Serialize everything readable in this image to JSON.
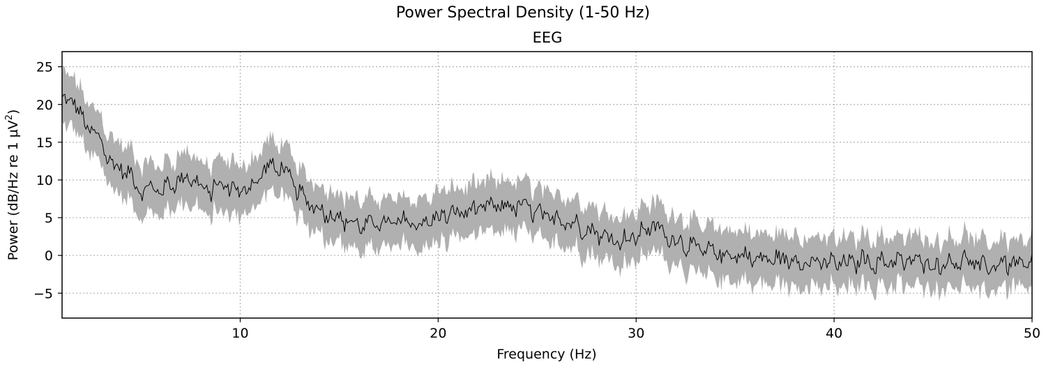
{
  "figure": {
    "suptitle": "Power Spectral Density (1-50 Hz)"
  },
  "chart_data": {
    "type": "line",
    "title": "EEG",
    "xlabel": "Frequency (Hz)",
    "ylabel_main": "Power (dB/Hz re 1 µV",
    "ylabel_sup": "2",
    "ylabel_end": ")",
    "xlim": [
      1,
      50
    ],
    "ylim": [
      -8.3,
      27
    ],
    "xticks": [
      10,
      20,
      30,
      40,
      50
    ],
    "yticks": [
      -5,
      0,
      5,
      10,
      15,
      20,
      25
    ],
    "ytick_labels": [
      "−5",
      "0",
      "5",
      "10",
      "15",
      "20",
      "25"
    ],
    "grid": true,
    "grid_style": "dotted",
    "band_color": "#b0b0b0",
    "line_color": "#000000",
    "series": [
      {
        "x": [
          1.0,
          1.5,
          2.0,
          2.5,
          3.0,
          3.5,
          4.0,
          4.5,
          5.0,
          5.5,
          6.0,
          6.5,
          7.0,
          7.5,
          8.0,
          8.5,
          9.0,
          9.5,
          10.0,
          10.5,
          11.0,
          11.5,
          12.0,
          12.5,
          13.0,
          13.5,
          14.0,
          14.5,
          15.0,
          15.5,
          16.0,
          16.5,
          17.0,
          17.5,
          18.0,
          18.5,
          19.0,
          19.5,
          20.0,
          20.5,
          21.0,
          21.5,
          22.0,
          22.5,
          23.0,
          23.5,
          24.0,
          24.5,
          25.0,
          25.5,
          26.0,
          26.5,
          27.0,
          27.5,
          28.0,
          28.5,
          29.0,
          29.5,
          30.0,
          30.5,
          31.0,
          31.5,
          32.0,
          32.5,
          33.0,
          33.5,
          34.0,
          34.5,
          35.0,
          35.5,
          36.0,
          36.5,
          37.0,
          37.5,
          38.0,
          38.5,
          39.0,
          39.5,
          40.0,
          40.5,
          41.0,
          41.5,
          42.0,
          42.5,
          43.0,
          43.5,
          44.0,
          44.5,
          45.0,
          45.5,
          46.0,
          46.5,
          47.0,
          47.5,
          48.0,
          48.5,
          49.0,
          49.5,
          50.0
        ],
        "mean": [
          20.0,
          21.0,
          18.0,
          16.5,
          15.0,
          12.0,
          11.5,
          10.5,
          8.5,
          9.0,
          8.5,
          9.5,
          10.0,
          10.5,
          9.0,
          8.5,
          9.5,
          9.0,
          8.5,
          9.0,
          10.5,
          12.0,
          11.5,
          10.5,
          8.0,
          7.0,
          6.0,
          5.5,
          5.0,
          4.5,
          4.0,
          4.0,
          4.5,
          4.0,
          4.5,
          4.5,
          4.0,
          4.5,
          5.0,
          5.5,
          5.5,
          6.0,
          6.0,
          6.5,
          6.5,
          6.5,
          6.5,
          6.5,
          5.5,
          5.0,
          5.0,
          4.5,
          4.0,
          3.5,
          3.0,
          2.5,
          2.0,
          2.0,
          2.5,
          3.5,
          4.0,
          2.5,
          2.0,
          1.5,
          1.0,
          0.5,
          0.5,
          0.0,
          0.0,
          0.0,
          -0.5,
          -0.5,
          -0.5,
          -0.5,
          -0.5,
          -1.0,
          -1.0,
          -1.0,
          -1.0,
          -1.0,
          -1.0,
          -0.5,
          -1.0,
          -1.0,
          -0.5,
          -1.0,
          -0.5,
          -1.0,
          -1.5,
          -1.0,
          -1.0,
          -0.5,
          -1.0,
          -1.5,
          -1.5,
          -1.0,
          -1.0,
          -1.5,
          -1.0
        ],
        "band": 3.3
      }
    ]
  }
}
